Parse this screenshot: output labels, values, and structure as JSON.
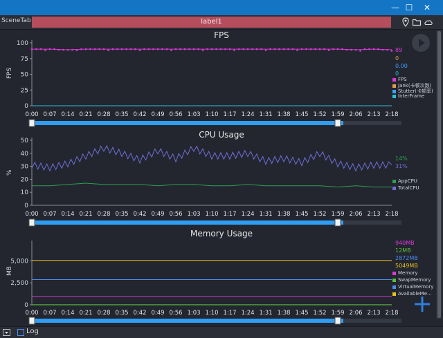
{
  "window": {
    "minimize_icon": "minimize-icon",
    "maximize_icon": "maximize-icon",
    "close_icon": "close-icon",
    "min_glyph": "—",
    "max_glyph": "☐",
    "close_glyph": "✕"
  },
  "toolbar": {
    "scene_tab": "SceneTab",
    "label": "label1"
  },
  "status": {
    "log_label": "Log"
  },
  "colors": {
    "fps": "#d63bd6",
    "jank": "#e0a040",
    "stutter": "#3aa0ff",
    "interframe": "#27c0d8",
    "appcpu": "#2e9e4f",
    "totalcpu": "#6f6fd6",
    "memory": "#d63bd6",
    "swap": "#5cbf3a",
    "virtual": "#4a8cf0",
    "available": "#e7c21b",
    "slider": "#2f9df4"
  },
  "panels": [
    {
      "title": "FPS",
      "ylabel": "FPS",
      "legend_values": [
        "89",
        "0",
        "0.00",
        "0"
      ],
      "legend_items": [
        "FPS",
        "Jank(卡顿次数)",
        "Stutter(卡顿率)",
        "InterFrame"
      ]
    },
    {
      "title": "CPU Usage",
      "ylabel": "%",
      "legend_values": [
        "14%",
        "31%"
      ],
      "legend_items": [
        "AppCPU",
        "TotalCPU"
      ]
    },
    {
      "title": "Memory Usage",
      "ylabel": "MB",
      "legend_values": [
        "940MB",
        "12MB",
        "2872MB",
        "5049MB"
      ],
      "legend_items": [
        "Memory",
        "SwapMemory",
        "VirtualMemory",
        "AvailableMe..."
      ]
    }
  ],
  "chart_data": [
    {
      "type": "line",
      "title": "FPS",
      "ylabel": "FPS",
      "x": [
        "0:00",
        "0:07",
        "0:14",
        "0:21",
        "0:28",
        "0:35",
        "0:42",
        "0:49",
        "0:56",
        "1:03",
        "1:10",
        "1:17",
        "1:24",
        "1:31",
        "1:38",
        "1:45",
        "1:52",
        "1:59",
        "2:06",
        "2:13",
        "2:18"
      ],
      "yticks": [
        "0",
        "25",
        "50",
        "75",
        "100"
      ],
      "ylim": [
        0,
        100
      ],
      "series": [
        {
          "name": "FPS",
          "values": [
            90,
            90,
            89,
            90,
            90,
            90,
            90,
            90,
            90,
            90,
            90,
            90,
            90,
            90,
            90,
            90,
            90,
            90,
            89,
            90,
            89
          ]
        },
        {
          "name": "Jank(卡顿次数)",
          "values": [
            0,
            0,
            0,
            0,
            0,
            0,
            0,
            0,
            0,
            0,
            0,
            0,
            0,
            0,
            0,
            0,
            0,
            0,
            0,
            0,
            0
          ]
        },
        {
          "name": "Stutter(卡顿率)",
          "values": [
            0,
            0,
            0,
            0,
            0,
            0,
            0,
            0,
            0,
            0,
            0,
            0,
            0,
            0,
            0,
            0,
            0,
            0,
            0,
            0,
            0
          ]
        },
        {
          "name": "InterFrame",
          "values": [
            0,
            0,
            0,
            0,
            0,
            0,
            0,
            0,
            0,
            0,
            0,
            0,
            0,
            0,
            0,
            0,
            0,
            0,
            0,
            0,
            0
          ]
        }
      ]
    },
    {
      "type": "line",
      "title": "CPU Usage",
      "ylabel": "%",
      "x": [
        "0:00",
        "0:07",
        "0:14",
        "0:21",
        "0:28",
        "0:35",
        "0:42",
        "0:49",
        "0:56",
        "1:03",
        "1:10",
        "1:17",
        "1:24",
        "1:31",
        "1:38",
        "1:45",
        "1:52",
        "1:59",
        "2:06",
        "2:13",
        "2:18"
      ],
      "yticks": [
        "0",
        "10",
        "20",
        "30",
        "40",
        "50"
      ],
      "ylim": [
        0,
        50
      ],
      "series": [
        {
          "name": "AppCPU",
          "values": [
            15,
            15,
            16,
            17,
            16,
            16,
            16,
            15,
            16,
            16,
            15,
            15,
            16,
            15,
            15,
            15,
            15,
            14,
            15,
            14,
            14
          ]
        },
        {
          "name": "TotalCPU",
          "values": [
            31,
            29,
            32,
            38,
            44,
            40,
            35,
            42,
            36,
            44,
            38,
            38,
            40,
            34,
            36,
            33,
            40,
            32,
            29,
            31,
            31
          ]
        }
      ]
    },
    {
      "type": "line",
      "title": "Memory Usage",
      "ylabel": "MB",
      "x": [
        "0:00",
        "0:07",
        "0:14",
        "0:21",
        "0:28",
        "0:35",
        "0:42",
        "0:49",
        "0:56",
        "1:03",
        "1:10",
        "1:17",
        "1:24",
        "1:31",
        "1:38",
        "1:45",
        "1:52",
        "1:59",
        "2:06",
        "2:13",
        "2:18"
      ],
      "yticks": [
        "0",
        "2,500",
        "5,000"
      ],
      "ylim": [
        0,
        7000
      ],
      "series": [
        {
          "name": "Memory",
          "values": [
            940,
            940,
            940,
            940,
            940,
            940,
            940,
            940,
            940,
            940,
            940,
            940,
            940,
            940,
            940,
            940,
            940,
            940,
            940,
            940,
            940
          ]
        },
        {
          "name": "SwapMemory",
          "values": [
            12,
            12,
            12,
            12,
            12,
            12,
            12,
            12,
            12,
            12,
            12,
            12,
            12,
            12,
            12,
            12,
            12,
            12,
            12,
            12,
            12
          ]
        },
        {
          "name": "VirtualMemory",
          "values": [
            2872,
            2872,
            2872,
            2872,
            2872,
            2872,
            2872,
            2872,
            2872,
            2872,
            2872,
            2872,
            2872,
            2872,
            2872,
            2872,
            2872,
            2872,
            2872,
            2872,
            2872
          ]
        },
        {
          "name": "AvailableMe...",
          "values": [
            5049,
            5049,
            5049,
            5049,
            5049,
            5049,
            5049,
            5049,
            5049,
            5049,
            5049,
            5049,
            5049,
            5049,
            5049,
            5049,
            5049,
            5049,
            5049,
            5049,
            5049
          ]
        }
      ]
    }
  ],
  "icons": {
    "location": "location-pin-icon",
    "folder": "folder-icon",
    "cloud": "cloud-icon",
    "play": "play-icon",
    "plus": "plus-icon",
    "dropdown": "dropdown-icon"
  }
}
